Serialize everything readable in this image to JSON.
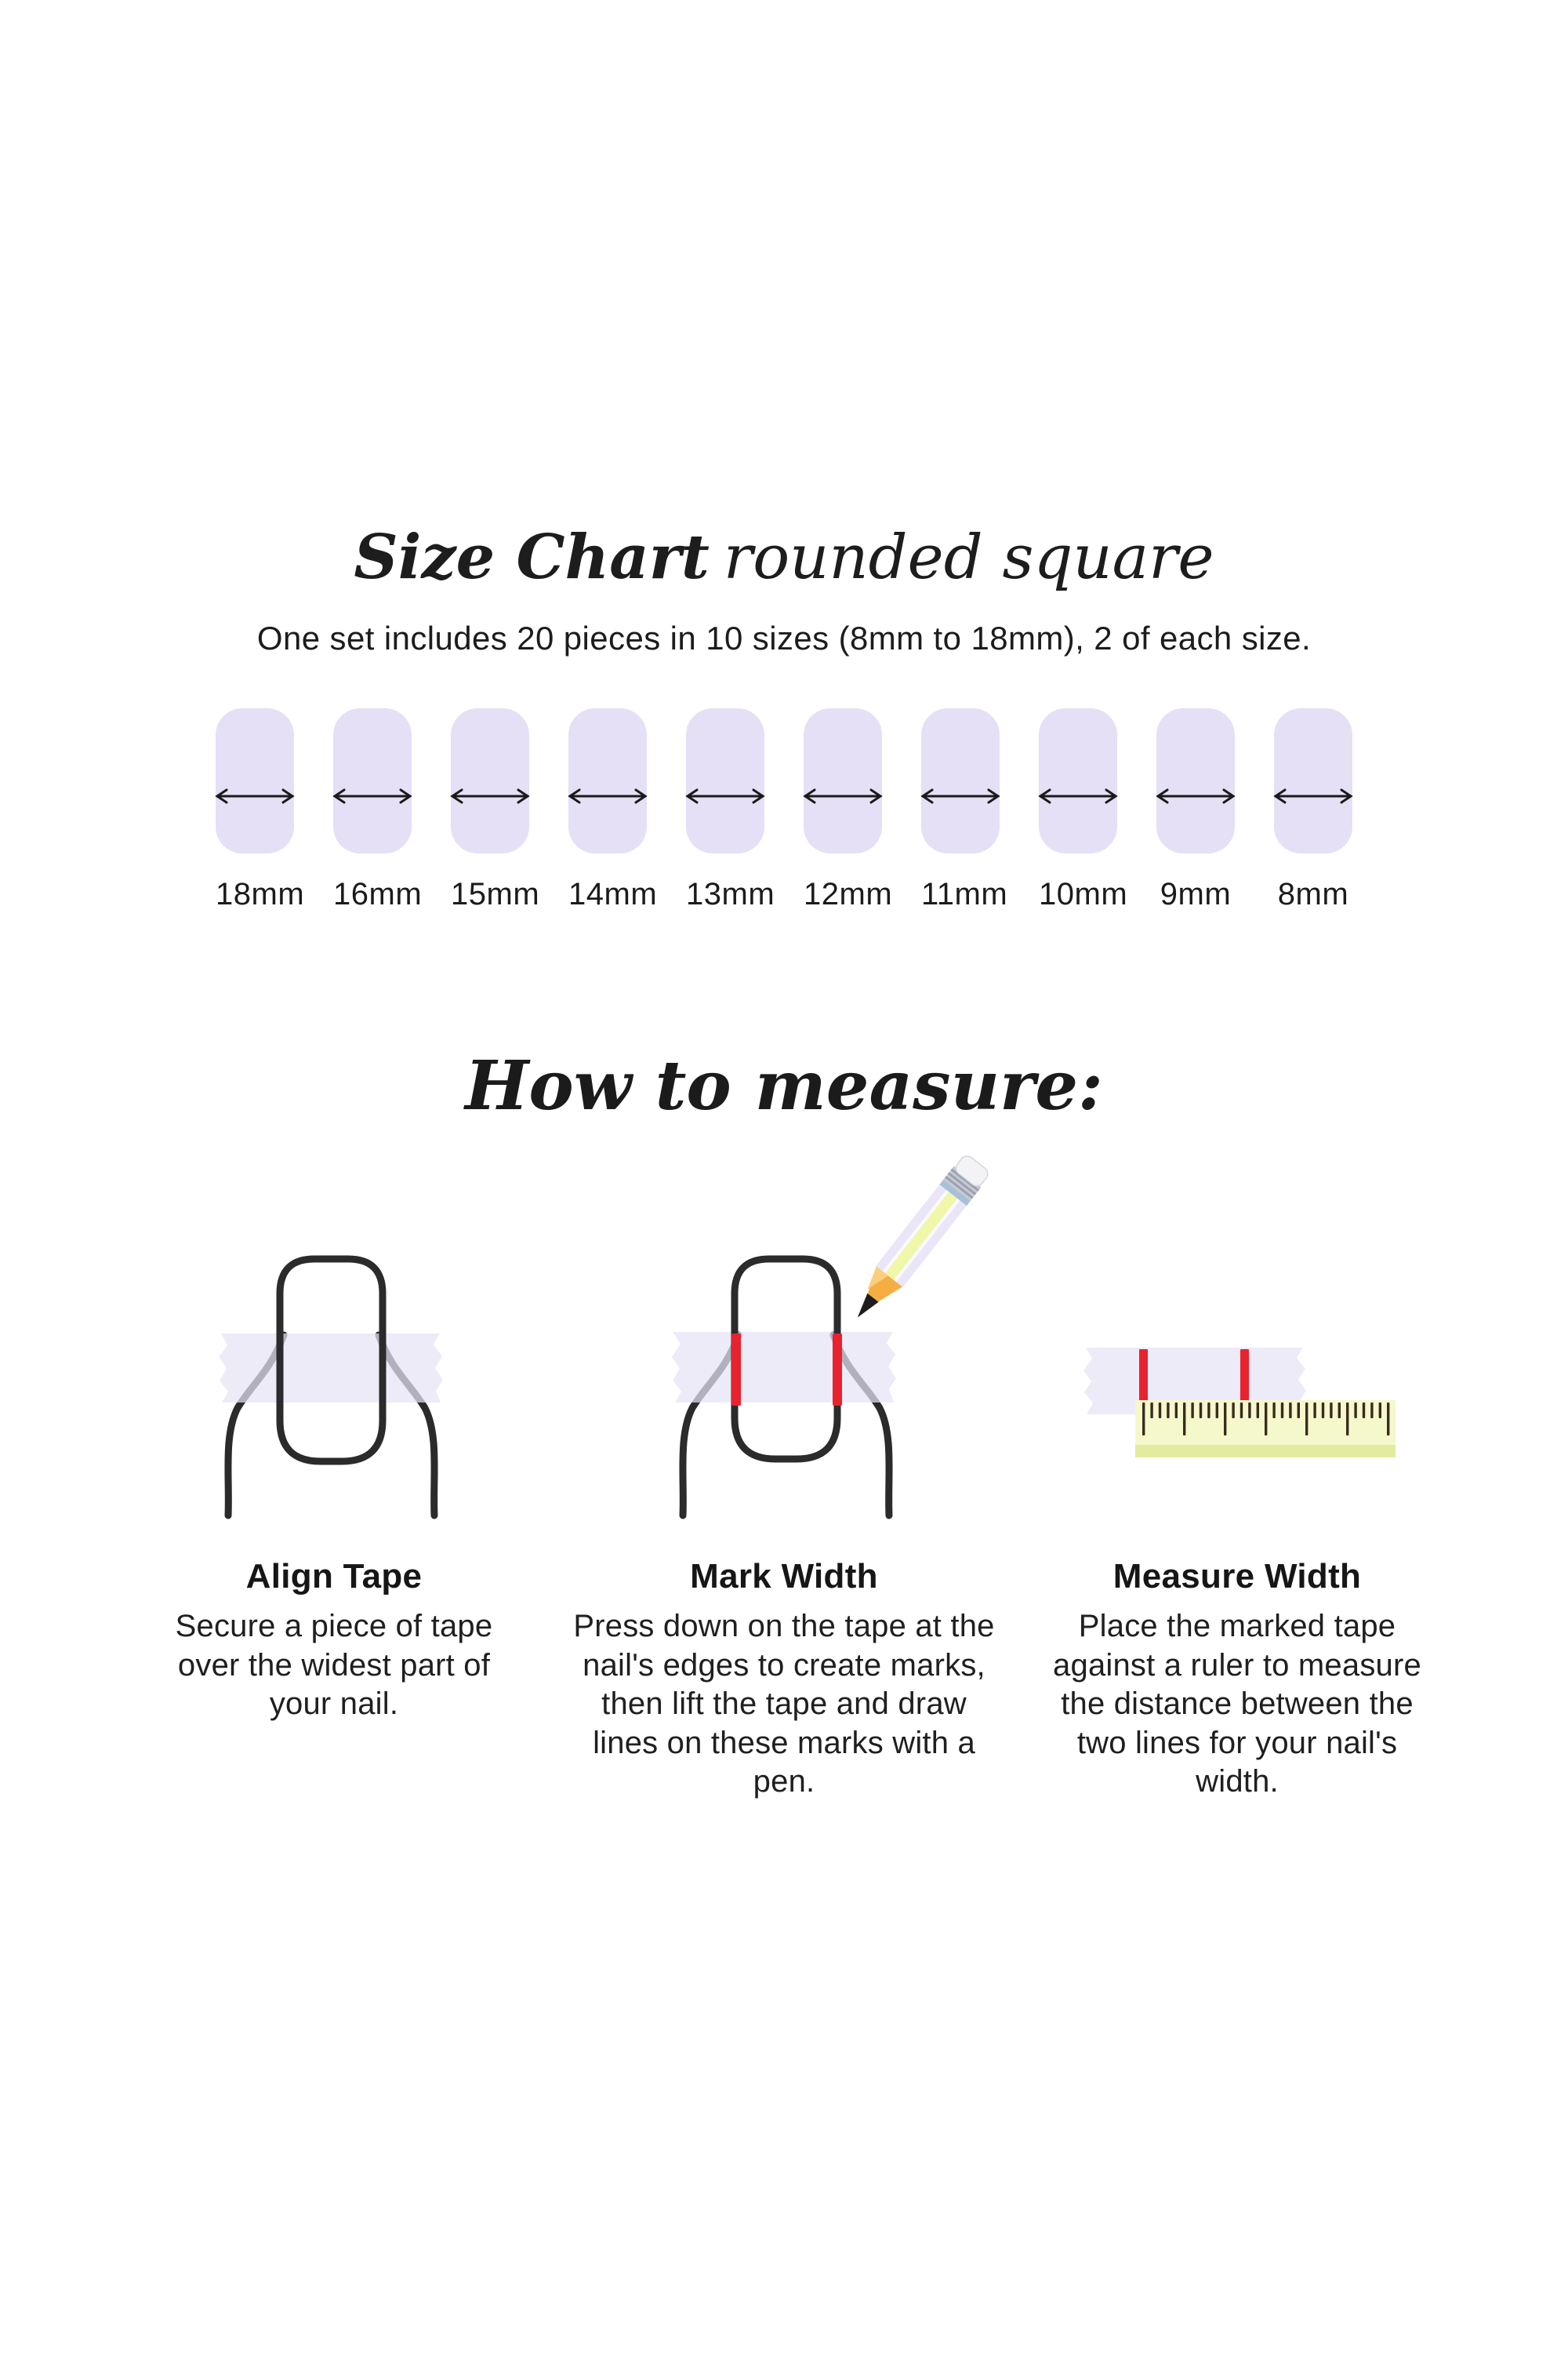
{
  "size_chart": {
    "title": "Size Chart",
    "title_suffix": "rounded square",
    "subtitle": "One set includes 20 pieces in 10 sizes (8mm to 18mm), 2 of each size.",
    "sizes": [
      "18mm",
      "16mm",
      "15mm",
      "14mm",
      "13mm",
      "12mm",
      "11mm",
      "10mm",
      "9mm",
      "8mm"
    ]
  },
  "how_to_measure": {
    "heading": "How to measure:",
    "steps": [
      {
        "title": "Align Tape",
        "description": "Secure a piece of tape over the widest part of your nail.",
        "illustration": "nail-with-tape"
      },
      {
        "title": "Mark Width",
        "description": "Press down on the tape at the nail's edges to create marks, then lift the tape and draw lines on these marks with a pen.",
        "illustration": "nail-with-tape-red-marks-and-pencil"
      },
      {
        "title": "Measure Width",
        "description": "Place the marked tape against a ruler to measure the distance between the two lines for your nail's width.",
        "illustration": "marked-tape-with-ruler"
      }
    ]
  },
  "colors": {
    "nail_fill": "#E5E0F6",
    "tape_fill": "#E7E3F5",
    "mark_red": "#E8222E",
    "ruler_body": "#F5F8CB",
    "ruler_edge": "#E2ECA0",
    "ruler_tick": "#3B2A1E",
    "outline_dark": "#2B2B2B",
    "text_dark": "#1F1F1F"
  }
}
